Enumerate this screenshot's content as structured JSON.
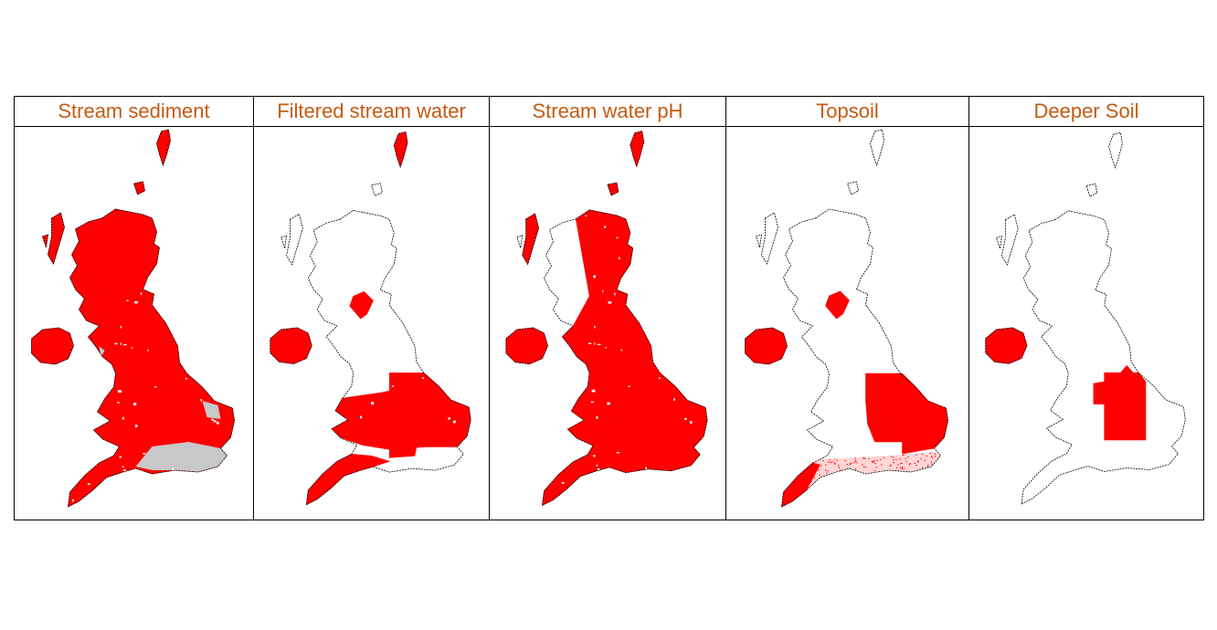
{
  "colors": {
    "coverage": "#ff0000",
    "outline": "#000000",
    "no_data": "#c8c8c8",
    "title": "#c55a11"
  },
  "panels": [
    {
      "title": "Stream sediment",
      "coverage": "full-with-gaps"
    },
    {
      "title": "Filtered stream water",
      "coverage": "wales-midlands-southwest-ni"
    },
    {
      "title": "Stream water pH",
      "coverage": "near-full"
    },
    {
      "title": "Topsoil",
      "coverage": "east-anglia-southwest-ni"
    },
    {
      "title": "Deeper Soil",
      "coverage": "east-midlands-ni"
    }
  ]
}
